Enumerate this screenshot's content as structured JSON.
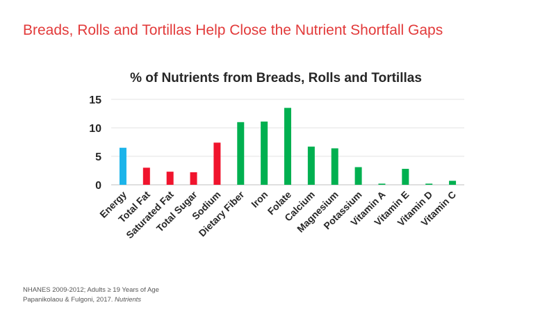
{
  "slide_title": "Breads, Rolls and Tortillas Help Close the Nutrient Shortfall Gaps",
  "footer": {
    "line1": "NHANES 2009-2012; Adults ≥ 19 Years of Age",
    "line2_text": "Papanikolaou & Fulgoni, 2017. ",
    "line2_journal": "Nutrients"
  },
  "colors": {
    "energy": "#1cb4ea",
    "limit": "#f0142d",
    "encourage": "#00b050",
    "title": "#e23a3a"
  },
  "chart_data": {
    "type": "bar",
    "title": "% of Nutrients from Breads, Rolls and Tortillas",
    "xlabel": "",
    "ylabel": "",
    "ylim": [
      0,
      15
    ],
    "yticks": [
      0,
      5,
      10,
      15
    ],
    "grid": true,
    "categories": [
      "Energy",
      "Total Fat",
      "Saturated Fat",
      "Total Sugar",
      "Sodium",
      "Dietary Fiber",
      "Iron",
      "Folate",
      "Calcium",
      "Magnesium",
      "Potassium",
      "Vitamin A",
      "Vitamin E",
      "Vitamin D",
      "Vitamin C"
    ],
    "values": [
      6.5,
      3.0,
      2.3,
      2.2,
      7.4,
      11.0,
      11.1,
      13.5,
      6.7,
      6.4,
      3.1,
      0.2,
      2.8,
      0.2,
      0.7
    ],
    "groups": [
      "energy",
      "limit",
      "limit",
      "limit",
      "limit",
      "encourage",
      "encourage",
      "encourage",
      "encourage",
      "encourage",
      "encourage",
      "encourage",
      "encourage",
      "encourage",
      "encourage"
    ]
  }
}
